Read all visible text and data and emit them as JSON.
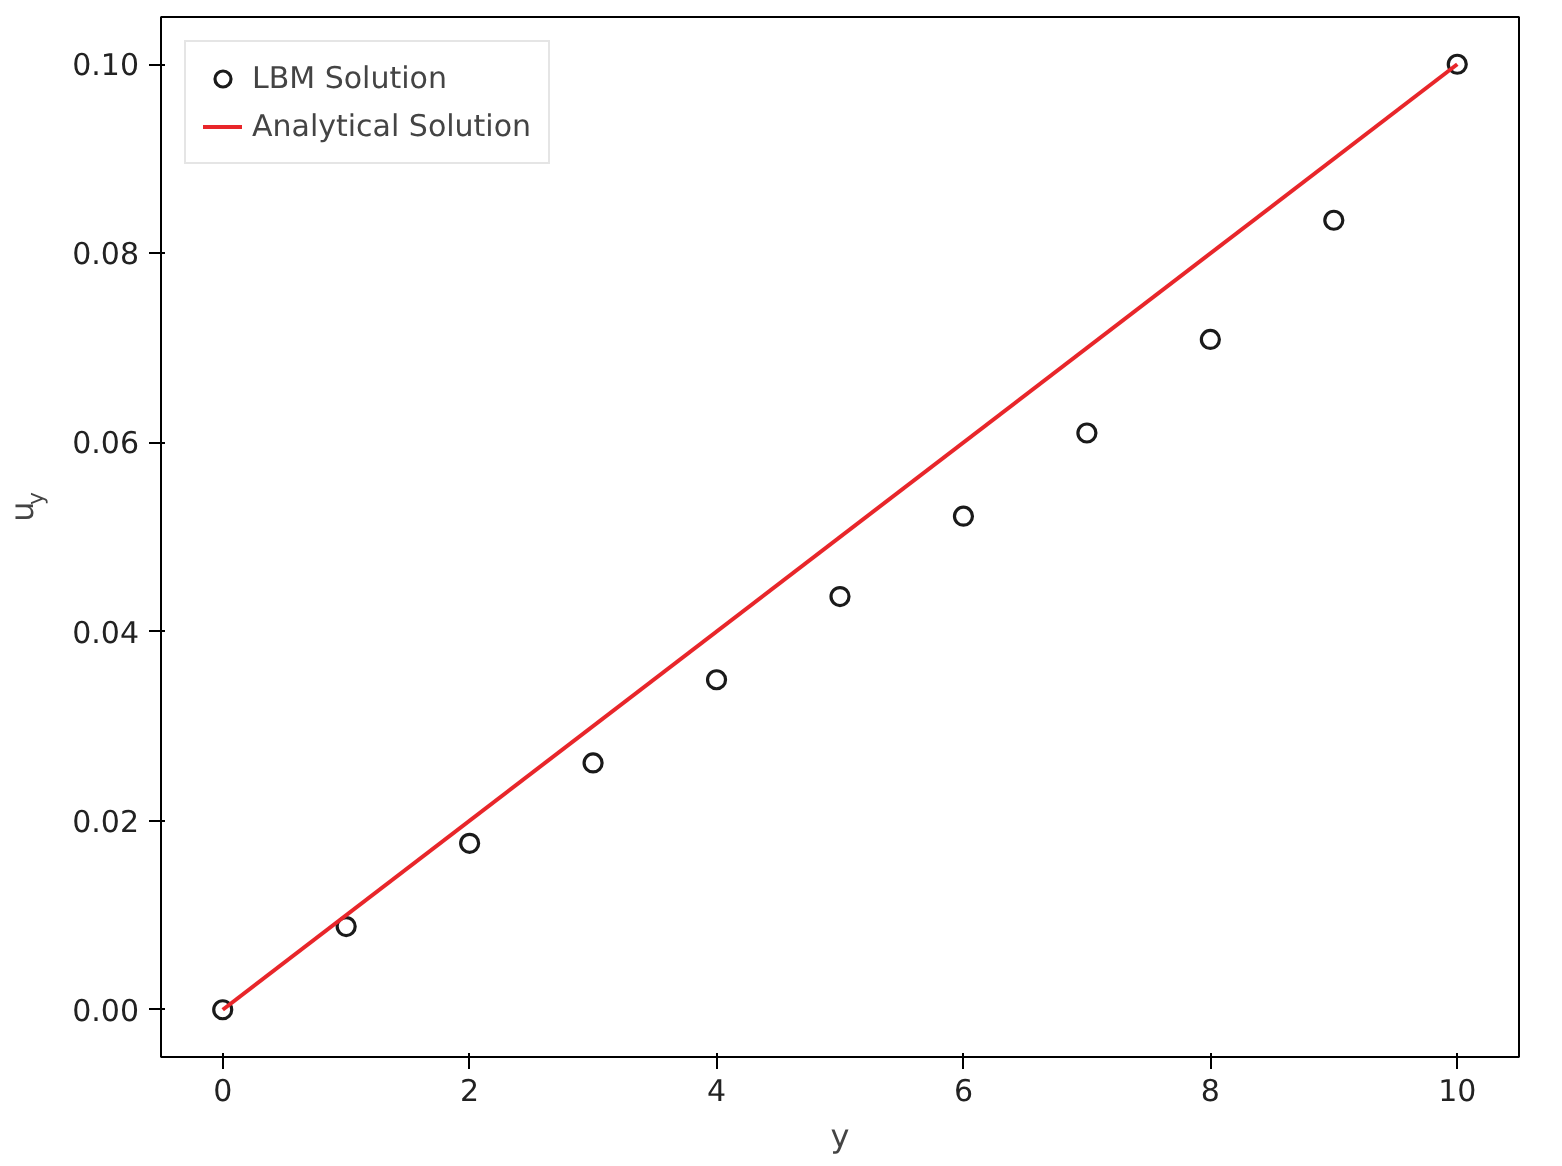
{
  "chart_data": {
    "type": "scatter",
    "xlabel": "y",
    "ylabel": "u$_{y}$",
    "xlim": [
      -0.5,
      10.5
    ],
    "ylim": [
      -0.005,
      0.105
    ],
    "xticks": [
      0,
      2,
      4,
      6,
      8,
      10
    ],
    "yticks": [
      {
        "value": 0,
        "label": "0.00"
      },
      {
        "value": 0.02,
        "label": "0.02"
      },
      {
        "value": 0.04,
        "label": "0.04"
      },
      {
        "value": 0.06,
        "label": "0.06"
      },
      {
        "value": 0.08,
        "label": "0.08"
      },
      {
        "value": 0.1,
        "label": "0.10"
      }
    ],
    "grid": false,
    "legend": "top left",
    "series": [
      {
        "name": "LBM Solution",
        "marker": "circle",
        "color": "#1a1a1a",
        "x": [
          0,
          1,
          2,
          3,
          4,
          5,
          6,
          7,
          8,
          9,
          10
        ],
        "values": [
          0,
          0.0088,
          0.0176,
          0.0261,
          0.0349,
          0.0437,
          0.0522,
          0.061,
          0.0709,
          0.0835,
          0.1
        ]
      },
      {
        "name": "Analytical Solution",
        "type": "line",
        "line_style": "solid",
        "color": "#e8262a",
        "x": [
          0,
          10
        ],
        "values": [
          0,
          0.1
        ]
      }
    ]
  }
}
